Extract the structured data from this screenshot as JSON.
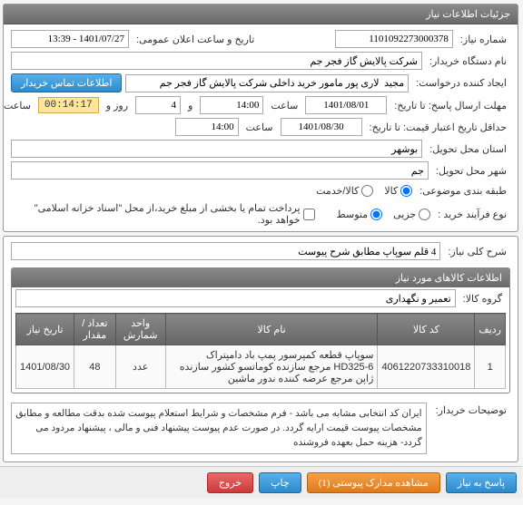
{
  "panel1": {
    "title": "جزئیات اطلاعات نیاز",
    "need_no_label": "شماره نیاز:",
    "need_no": "1101092273000378",
    "public_date_label": "تاریخ و ساعت اعلان عمومی:",
    "public_date": "1401/07/27 - 13:39",
    "buyer_org_label": "نام دستگاه خریدار:",
    "buyer_org": "شرکت پالایش گاز فجر جم",
    "creator_label": "ایجاد کننده درخواست:",
    "creator": "مجید  لاری پور مامور خرید داخلی شرکت پالایش گاز فجر جم",
    "contact_btn": "اطلاعات تماس خریدار",
    "deadline_label": "مهلت ارسال پاسخ: تا تاریخ:",
    "deadline_date": "1401/08/01",
    "time_label": "ساعت",
    "deadline_time": "14:00",
    "and_label": "و",
    "days": "4",
    "day_label": "روز و",
    "countdown": "00:14:17",
    "remain_label": "ساعت باقی مانده",
    "validity_label": "حداقل تاریخ اعتبار قیمت: تا تاریخ:",
    "validity_date": "1401/08/30",
    "validity_time": "14:00",
    "province_label": "استان محل تحویل:",
    "province": "بوشهر",
    "city_label": "شهر محل تحویل:",
    "city": "جم",
    "category_label": "طبقه بندی موضوعی:",
    "cat_goods": "کالا",
    "cat_service": "کالا/خدمت",
    "process_label": "نوع فرآیند خرید :",
    "proc_minor": "جزیی",
    "proc_medium": "متوسط",
    "payment_note": "پرداخت تمام یا بخشی از مبلغ خرید،از محل \"اسناد خزانه اسلامی\" خواهد بود."
  },
  "panel2": {
    "desc_label": "شرح کلی نیاز:",
    "desc": "4 قلم سوپاپ مطابق شرح پیوست",
    "goods_title": "اطلاعات کالاهای مورد نیاز",
    "group_label": "گروه کالا:",
    "group": "تعمیر و نگهداری",
    "cols": {
      "row": "ردیف",
      "code": "کد کالا",
      "name": "نام کالا",
      "unit": "واحد شمارش",
      "qty": "تعداد / مقدار",
      "date": "تاریخ نیاز"
    },
    "rows": [
      {
        "idx": "1",
        "code": "4061220733310018",
        "name": "سوپاپ قطعه کمپرسور پمپ باد دامپتراک HD325-6 مرجع سازنده کوماتسو کشور سازنده ژاپن مرجع عرضه کننده ندور ماشین",
        "unit": "عدد",
        "qty": "48",
        "date": "1401/08/30"
      }
    ],
    "notes_label": "توضیحات خریدار:",
    "notes": "ایران کد انتخابی مشابه می باشد  -  فرم مشخصات و شرایط استعلام  پیوست شده بدقت مطالعه و مطابق مشخصات پیوست قیمت ارایه گردد. در صورت عدم پیوست پیشنهاد فنی و مالی ، پیشنهاد مردود می گردد- هزینه حمل بعهده فروشنده"
  },
  "buttons": {
    "reply": "پاسخ به نیاز",
    "attachments": "مشاهده مدارک پیوستی (1)",
    "print": "چاپ",
    "exit": "خروج"
  }
}
